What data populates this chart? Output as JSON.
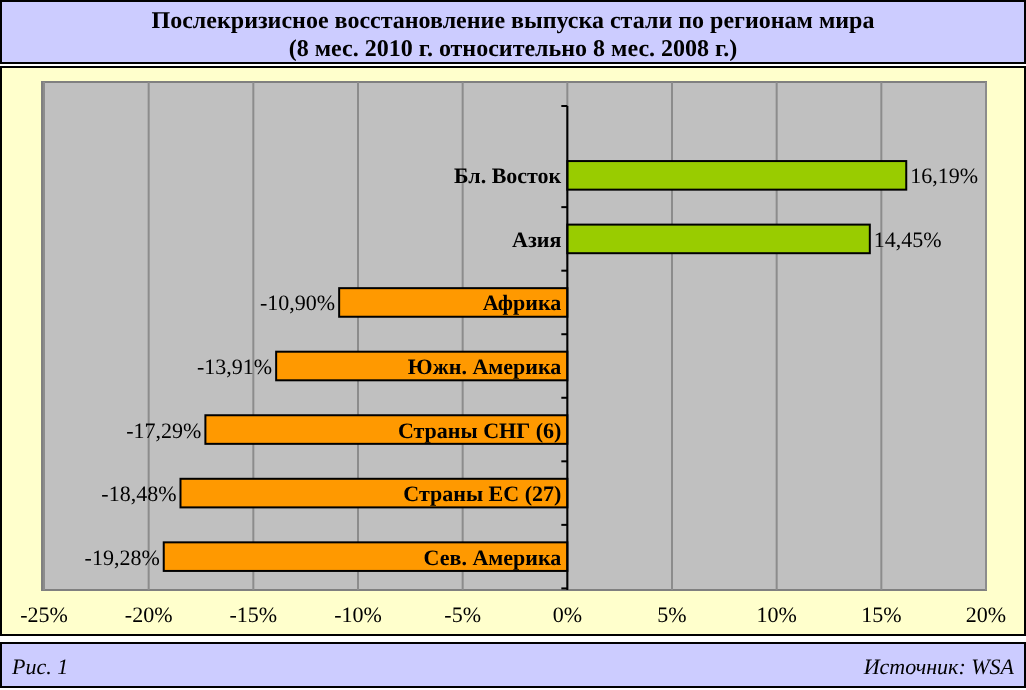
{
  "chart_data": {
    "type": "bar",
    "orientation": "horizontal",
    "title": "Послекризисное восстановление выпуска стали по регионам мира",
    "subtitle": "(8 мес. 2010 г. относительно 8 мес. 2008 г.)",
    "categories": [
      "Бл. Восток",
      "Азия",
      "Африка",
      "Южн. Америка",
      "Страны СНГ (6)",
      "Страны ЕС (27)",
      "Сев. Америка"
    ],
    "values": [
      16.19,
      14.45,
      -10.9,
      -13.91,
      -17.29,
      -18.48,
      -19.28
    ],
    "value_labels": [
      "16,19%",
      "14,45%",
      "-10,90%",
      "-13,91%",
      "-17,29%",
      "-18,48%",
      "-19,28%"
    ],
    "colors": [
      "#99cc00",
      "#99cc00",
      "#ff9900",
      "#ff9900",
      "#ff9900",
      "#ff9900",
      "#ff9900"
    ],
    "xlim": [
      -25,
      20
    ],
    "xticks": [
      {
        "value": -25,
        "label": "-25%"
      },
      {
        "value": -20,
        "label": "-20%"
      },
      {
        "value": -15,
        "label": "-15%"
      },
      {
        "value": -10,
        "label": "-10%"
      },
      {
        "value": -5,
        "label": "-5%"
      },
      {
        "value": 0,
        "label": "0%"
      },
      {
        "value": 5,
        "label": "5%"
      },
      {
        "value": 10,
        "label": "10%"
      },
      {
        "value": 15,
        "label": "15%"
      },
      {
        "value": 20,
        "label": "20%"
      }
    ],
    "grid": "x",
    "annotations": [
      "Рис. 1",
      "Источник: WSA"
    ]
  }
}
